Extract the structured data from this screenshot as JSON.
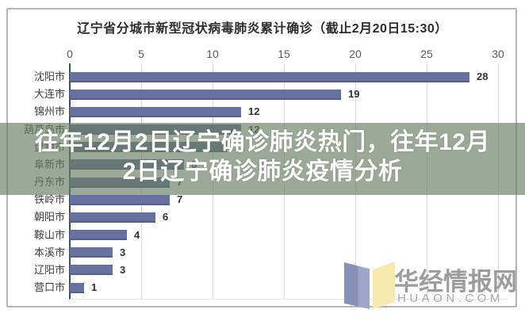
{
  "title": "辽宁省分城市新型冠状病毒肺炎累计确诊（截止2月20日15:30）",
  "overlay": {
    "line1": "往年12月2日辽宁确诊肺炎热门，往年12月",
    "line2": "2日辽宁确诊肺炎疫情分析"
  },
  "watermark": {
    "name": "华经情报网",
    "domain": "HUAON.COM"
  },
  "colors": {
    "bar": "#66719f",
    "axis_line": "#3e4a66",
    "grid": "#d9d9d9",
    "overlay_bg": "rgba(104,124,99,0.66)",
    "overlay_text": "#ffffff",
    "logo_blue": "#8791b8",
    "logo_yellow": "#f6e9ad",
    "watermark_text": "#9c9c9c"
  },
  "chart_data": {
    "type": "bar",
    "orientation": "horizontal",
    "title": "辽宁省分城市新型冠状病毒肺炎累计确诊（截止2月20日15:30）",
    "categories": [
      "沈阳市",
      "大连市",
      "锦州市",
      "葫芦岛市",
      "盘锦市",
      "阜新市",
      "丹东市",
      "铁岭市",
      "朝阳市",
      "鞍山市",
      "本溪市",
      "辽阳市",
      "营口市"
    ],
    "values": [
      28,
      19,
      12,
      12,
      11,
      8,
      7,
      7,
      6,
      4,
      3,
      3,
      1
    ],
    "xlabel": "",
    "ylabel": "",
    "xlim": [
      0,
      30
    ],
    "xticks": [
      0,
      5,
      10,
      15,
      20,
      25,
      30
    ],
    "grid": true,
    "legend": false,
    "value_labels": true
  }
}
